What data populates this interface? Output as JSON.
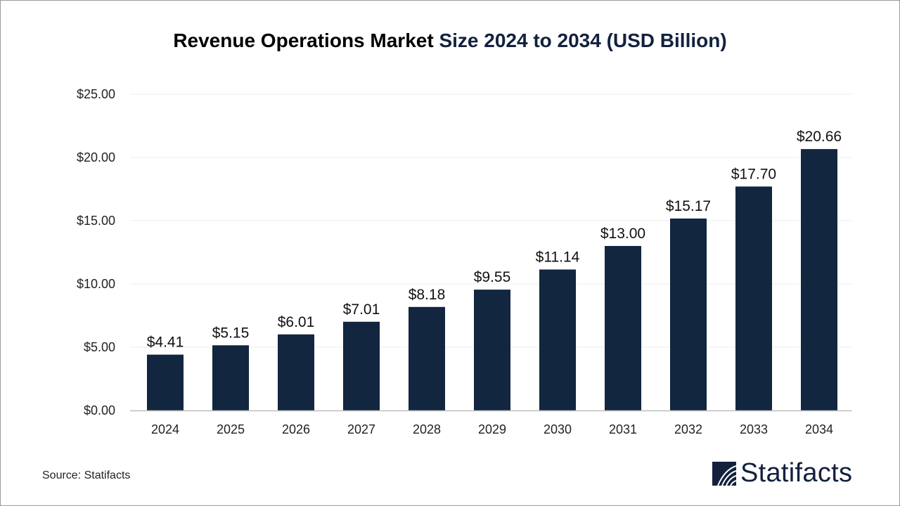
{
  "chart_data": {
    "type": "bar",
    "title_part1": "Revenue Operations Market",
    "title_part2": "Size 2024 to 2034  (USD Billion)",
    "categories": [
      "2024",
      "2025",
      "2026",
      "2027",
      "2028",
      "2029",
      "2030",
      "2031",
      "2032",
      "2033",
      "2034"
    ],
    "values": [
      4.41,
      5.15,
      6.01,
      7.01,
      8.18,
      9.55,
      11.14,
      13.0,
      15.17,
      17.7,
      20.66
    ],
    "data_labels": [
      "$4.41",
      "$5.15",
      "$6.01",
      "$7.01",
      "$8.18",
      "$9.55",
      "$11.14",
      "$13.00",
      "$15.17",
      "$17.70",
      "$20.66"
    ],
    "ylim": [
      0,
      25
    ],
    "yticks": [
      0,
      5,
      10,
      15,
      20,
      25
    ],
    "ytick_labels": [
      "$0.00",
      "$5.00",
      "$10.00",
      "$15.00",
      "$20.00",
      "$25.00"
    ],
    "xlabel": "",
    "ylabel": "",
    "grid": true,
    "bar_color": "#12263f"
  },
  "source": "Source: Statifacts",
  "logo": {
    "text": "Statifacts",
    "color": "#13213d"
  }
}
